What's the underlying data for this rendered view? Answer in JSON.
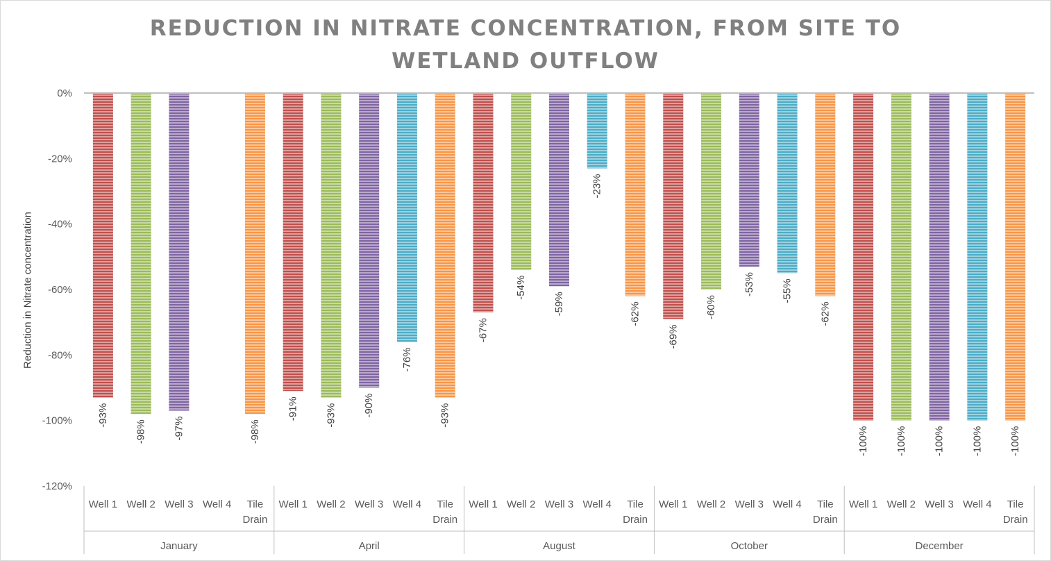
{
  "chart_data": {
    "type": "bar",
    "title": "REDUCTION IN NITRATE CONCENTRATION, FROM SITE TO WETLAND OUTFLOW",
    "title_lines": [
      "REDUCTION IN NITRATE CONCENTRATION, FROM SITE TO",
      "WETLAND OUTFLOW"
    ],
    "ylabel": "Reduction in Nitrate concentration",
    "xlabel": "",
    "ylim": [
      -120,
      0
    ],
    "y_ticks": [
      0,
      -20,
      -40,
      -60,
      -80,
      -100,
      -120
    ],
    "y_tick_labels": [
      "0%",
      "-20%",
      "-40%",
      "-60%",
      "-80%",
      "-100%",
      "-120%"
    ],
    "grid": false,
    "legend": "none",
    "groups": [
      "January",
      "April",
      "August",
      "October",
      "December"
    ],
    "categories": [
      "Well 1",
      "Well 2",
      "Well 3",
      "Well 4",
      "Tile Drain"
    ],
    "series_colors": {
      "Well 1": "#c0504d",
      "Well 2": "#9bbb59",
      "Well 3": "#8064a2",
      "Well 4": "#4bacc6",
      "Tile Drain": "#f79646"
    },
    "values": [
      [
        -93,
        -98,
        -97,
        null,
        -98
      ],
      [
        -91,
        -93,
        -90,
        -76,
        -93
      ],
      [
        -67,
        -54,
        -59,
        -23,
        -62
      ],
      [
        -69,
        -60,
        -53,
        -55,
        -62
      ],
      [
        -100,
        -100,
        -100,
        -100,
        -100
      ]
    ],
    "data_labels": [
      [
        "-93%",
        "-98%",
        "-97%",
        "",
        "-98%"
      ],
      [
        "-91%",
        "-93%",
        "-90%",
        "-76%",
        "-93%"
      ],
      [
        "-67%",
        "-54%",
        "-59%",
        "-23%",
        "-62%"
      ],
      [
        "-69%",
        "-60%",
        "-53%",
        "-55%",
        "-62%"
      ],
      [
        "-100%",
        "-100%",
        "-100%",
        "-100%",
        "-100%"
      ]
    ]
  }
}
